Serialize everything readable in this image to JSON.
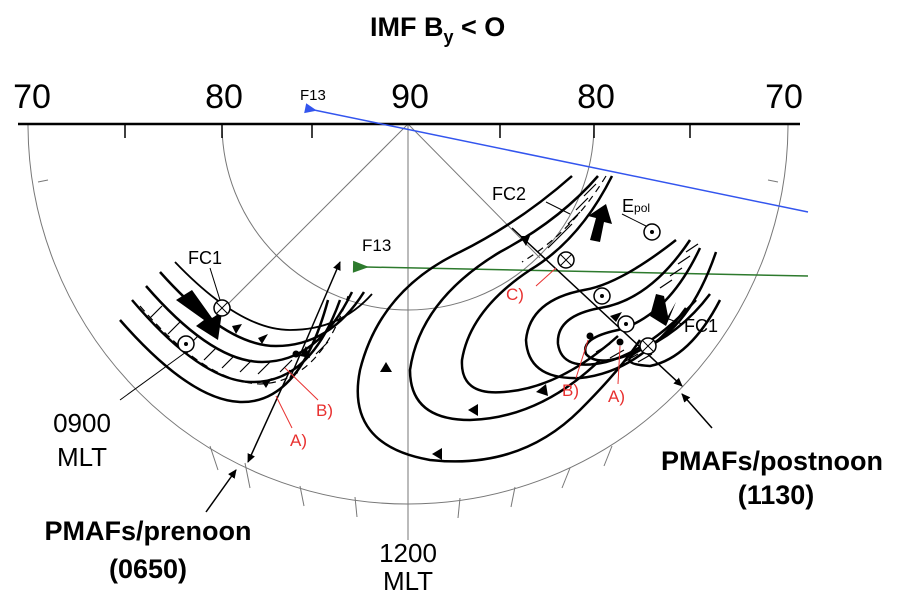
{
  "title": {
    "main": "IMF B",
    "sub": "y",
    "tail": " < O"
  },
  "latitude_labels": {
    "left_outer": "70",
    "left_inner": "80",
    "center": "90",
    "right_inner": "80",
    "right_outer": "70"
  },
  "satellite_labels": {
    "f13_upper": "F13",
    "f13_middle": "F13"
  },
  "feature_labels": {
    "fc1_left": "FC1",
    "fc1_right": "FC1",
    "fc2": "FC2",
    "epol_main": "E",
    "epol_sub": "pol"
  },
  "point_labels": {
    "a_left": "A)",
    "b_left": "B)",
    "a_right": "A)",
    "b_right": "B)",
    "c_right": "C)"
  },
  "time_labels": {
    "left_time": "0900",
    "left_mlt": "MLT",
    "bottom_time": "1200",
    "bottom_mlt": "MLT"
  },
  "annotations": {
    "prenoon_title": "PMAFs/prenoon",
    "prenoon_time": "(0650)",
    "postnoon_title": "PMAFs/postnoon",
    "postnoon_time": "(1130)"
  },
  "colors": {
    "ink": "#000000",
    "f13_upper_track": "#3355ee",
    "f13_middle_track": "#2d7a2d",
    "point_labels": "#e8302f",
    "grid": "#777777"
  }
}
